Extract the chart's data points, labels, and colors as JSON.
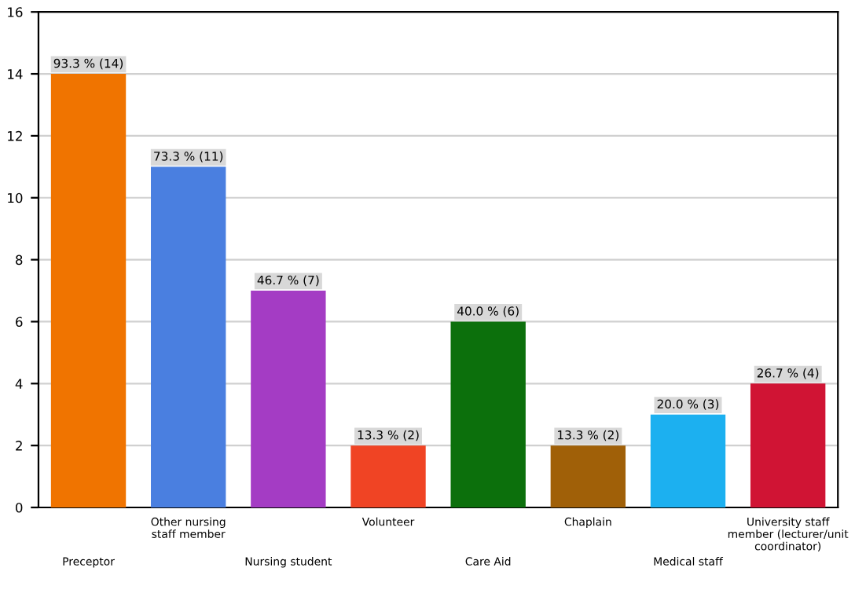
{
  "chart_data": {
    "type": "bar",
    "categories": [
      "Preceptor",
      "Other nursing\nstaff member",
      "Nursing student",
      "Volunteer",
      "Care Aid",
      "Chaplain",
      "Medical staff",
      "University staff\nmember (lecturer/unit\ncoordinator)"
    ],
    "values": [
      14,
      11,
      7,
      2,
      6,
      2,
      3,
      4
    ],
    "colors": [
      "#f07400",
      "#4a7fe0",
      "#a43cc4",
      "#f04424",
      "#0c700c",
      "#a06008",
      "#1cb0f0",
      "#d01434"
    ],
    "value_labels": [
      "93.3 % (14)",
      "73.3 % (11)",
      "46.7 % (7)",
      "13.3 % (2)",
      "40.0 % (6)",
      "13.3 % (2)",
      "20.0 % (3)",
      "26.7 % (4)"
    ],
    "ylim": [
      0,
      16
    ],
    "yticks": [
      0,
      2,
      4,
      6,
      8,
      10,
      12,
      14,
      16
    ],
    "grid": "y",
    "legend": false
  }
}
